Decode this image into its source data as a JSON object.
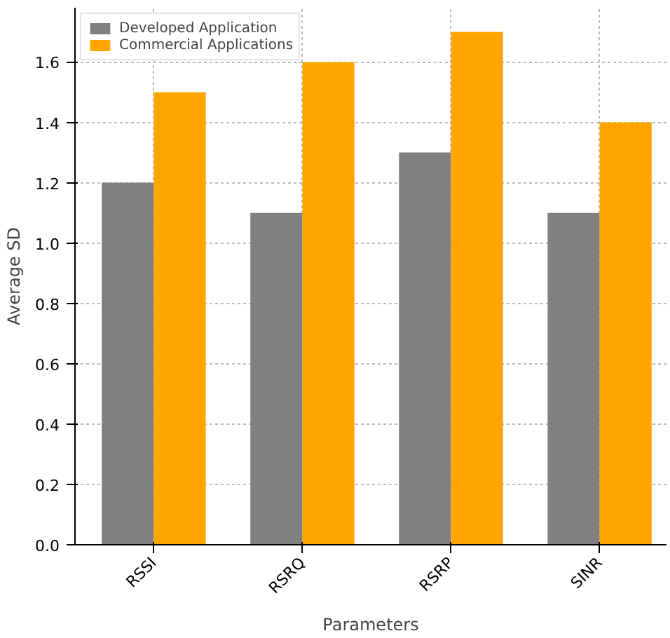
{
  "chart_data": {
    "type": "bar",
    "xlabel": "Parameters",
    "ylabel": "Average SD",
    "categories": [
      "RSSI",
      "RSRQ",
      "RSRP",
      "SINR"
    ],
    "series": [
      {
        "name": "Developed Application",
        "color": "#808080",
        "values": [
          1.2,
          1.1,
          1.3,
          1.1
        ]
      },
      {
        "name": "Commercial Applications",
        "color": "#ffa500",
        "values": [
          1.5,
          1.6,
          1.7,
          1.4
        ]
      }
    ],
    "ylim": [
      0,
      1.78
    ],
    "yticks": [
      {
        "value": 0,
        "label": "0.0"
      },
      0.2,
      0.4,
      0.6,
      0.8,
      {
        "value": 1,
        "label": "1.0"
      },
      1.2,
      1.4,
      1.6
    ],
    "grid": true,
    "legend": "top left"
  }
}
